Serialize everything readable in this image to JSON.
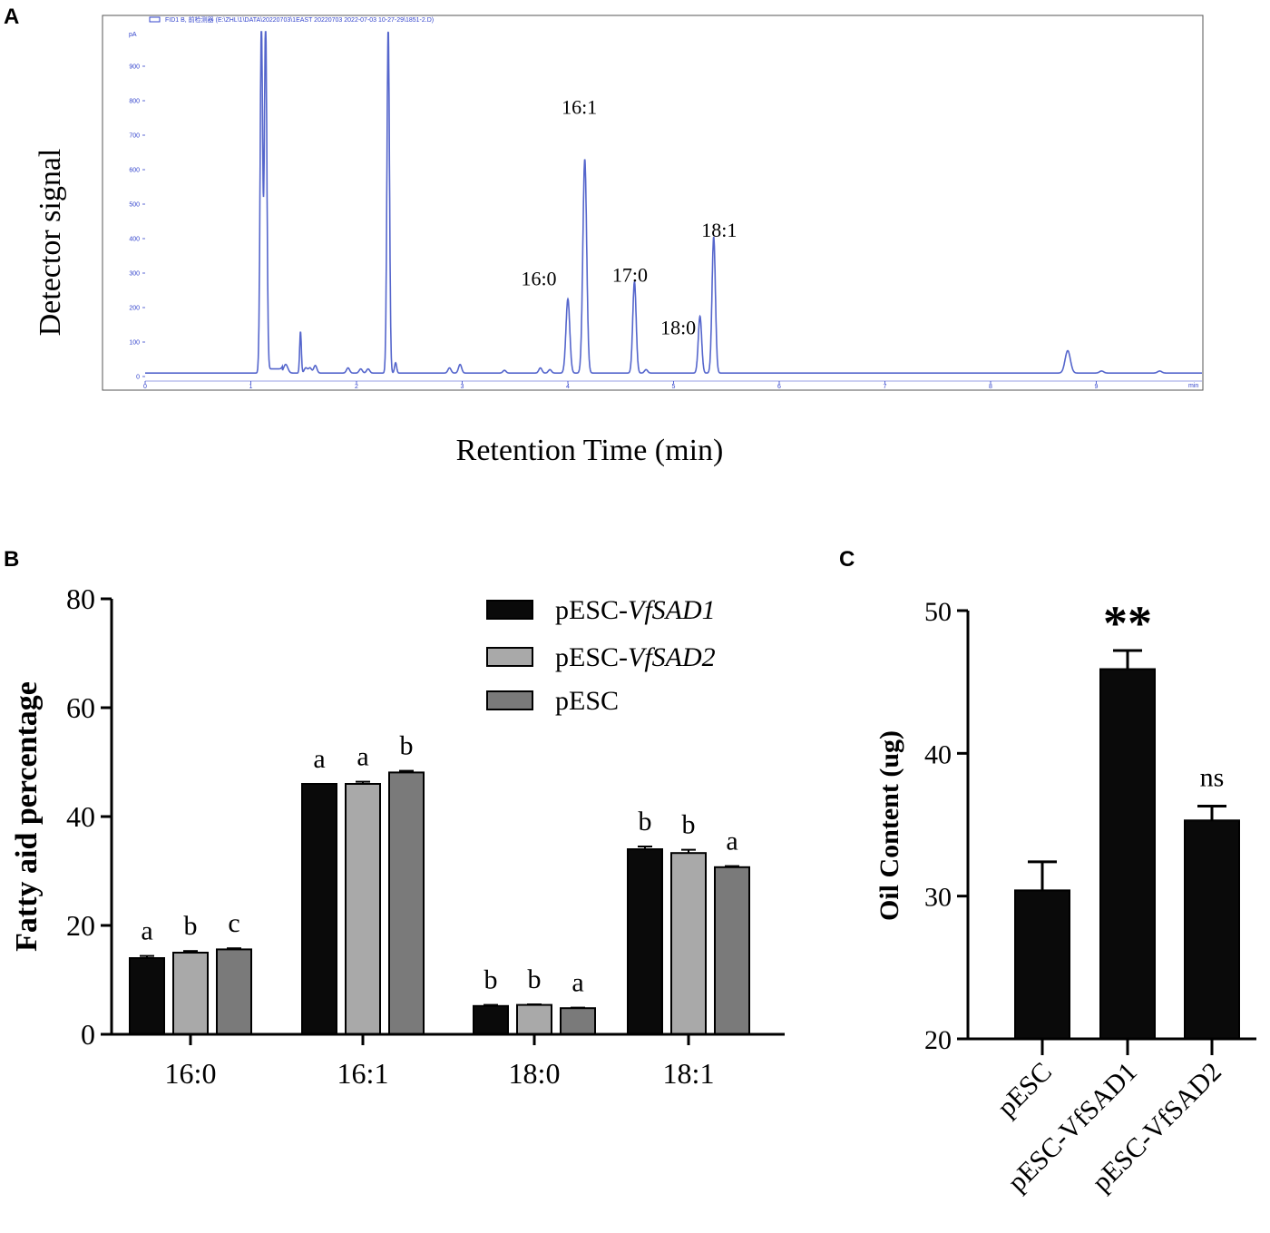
{
  "panels": {
    "a": "A",
    "b": "B",
    "c": "C"
  },
  "colors": {
    "trace": "#5566cc",
    "bar_vfsad1": "#0a0a0a",
    "bar_vfsad2": "#a9a9a9",
    "bar_pesc": "#7a7a7a",
    "axis": "#000000"
  },
  "chart_data": [
    {
      "id": "A",
      "type": "line",
      "title": "",
      "xlabel": "Retention Time (min)",
      "ylabel": "Detector signal",
      "header": "FID1 B, 前检测器 (E:\\ZHL\\1\\DATA\\20220703\\1EAST 20220703 2022-07-03 10-27-29\\1851-2.D)",
      "y_unit": "pA",
      "x_unit": "min",
      "xlim": [
        0,
        10
      ],
      "ylim": [
        0,
        1000
      ],
      "x_ticks": [
        "0",
        "1",
        "2",
        "3",
        "4",
        "5",
        "6",
        "7",
        "8",
        "9"
      ],
      "y_ticks": [
        "0",
        "100",
        "200",
        "300",
        "400",
        "500",
        "600",
        "700",
        "800",
        "900"
      ],
      "baseline": 10,
      "peaks": [
        {
          "rt": 1.1,
          "height": 1000,
          "width": 0.012
        },
        {
          "rt": 1.14,
          "height": 1000,
          "width": 0.012
        },
        {
          "rt": 1.33,
          "height": 25,
          "width": 0.02
        },
        {
          "rt": 1.47,
          "height": 120,
          "width": 0.008
        },
        {
          "rt": 1.52,
          "height": 15,
          "width": 0.015
        },
        {
          "rt": 1.56,
          "height": 15,
          "width": 0.015
        },
        {
          "rt": 1.61,
          "height": 22,
          "width": 0.015
        },
        {
          "rt": 1.92,
          "height": 15,
          "width": 0.015
        },
        {
          "rt": 2.04,
          "height": 12,
          "width": 0.015
        },
        {
          "rt": 2.11,
          "height": 12,
          "width": 0.015
        },
        {
          "rt": 2.3,
          "height": 1000,
          "width": 0.012
        },
        {
          "rt": 2.37,
          "height": 30,
          "width": 0.01
        },
        {
          "rt": 2.88,
          "height": 15,
          "width": 0.015
        },
        {
          "rt": 2.98,
          "height": 25,
          "width": 0.015
        },
        {
          "rt": 3.4,
          "height": 8,
          "width": 0.015
        },
        {
          "rt": 3.74,
          "height": 15,
          "width": 0.015
        },
        {
          "rt": 3.83,
          "height": 10,
          "width": 0.015
        },
        {
          "rt": 4.0,
          "height": 215,
          "width": 0.018
        },
        {
          "rt": 4.16,
          "height": 620,
          "width": 0.018
        },
        {
          "rt": 4.63,
          "height": 265,
          "width": 0.016
        },
        {
          "rt": 4.74,
          "height": 10,
          "width": 0.015
        },
        {
          "rt": 5.25,
          "height": 165,
          "width": 0.016
        },
        {
          "rt": 5.38,
          "height": 395,
          "width": 0.016
        },
        {
          "rt": 8.73,
          "height": 65,
          "width": 0.025
        },
        {
          "rt": 9.05,
          "height": 6,
          "width": 0.02
        },
        {
          "rt": 9.6,
          "height": 6,
          "width": 0.02
        }
      ],
      "peak_labels": [
        {
          "label": "16:1",
          "rt": 4.16
        },
        {
          "label": "16:0",
          "rt": 4.0
        },
        {
          "label": "17:0",
          "rt": 4.63
        },
        {
          "label": "18:1",
          "rt": 5.38
        },
        {
          "label": "18:0",
          "rt": 5.25
        }
      ]
    },
    {
      "id": "B",
      "type": "bar",
      "title": "",
      "xlabel": "",
      "ylabel": "Fatty aid percentage",
      "ylim": [
        0,
        80
      ],
      "y_ticks": [
        "0",
        "20",
        "40",
        "60",
        "80"
      ],
      "categories": [
        "16:0",
        "16:1",
        "18:0",
        "18:1"
      ],
      "series": [
        {
          "name_prefix": "pESC-",
          "name_italic": "VfSAD1",
          "values": [
            14.0,
            46.0,
            5.2,
            34.0
          ],
          "errors": [
            0.4,
            0.0,
            0.2,
            0.5
          ],
          "letters": [
            "a",
            "a",
            "b",
            "b"
          ]
        },
        {
          "name_prefix": "pESC-",
          "name_italic": "VfSAD2",
          "values": [
            15.0,
            46.0,
            5.4,
            33.3
          ],
          "errors": [
            0.3,
            0.4,
            0.1,
            0.6
          ],
          "letters": [
            "b",
            "a",
            "b",
            "b"
          ]
        },
        {
          "name_prefix": "pESC",
          "name_italic": "",
          "values": [
            15.6,
            48.1,
            4.8,
            30.7
          ],
          "errors": [
            0.2,
            0.3,
            0.1,
            0.2
          ],
          "letters": [
            "c",
            "b",
            "a",
            "a"
          ]
        }
      ]
    },
    {
      "id": "C",
      "type": "bar",
      "title": "",
      "xlabel": "",
      "ylabel": "Oil  Content (ug)",
      "ylim": [
        20,
        50
      ],
      "y_ticks": [
        "20",
        "30",
        "40",
        "50"
      ],
      "categories": [
        "pESC",
        "pESC-VfSAD1",
        "pESC-VfSAD2"
      ],
      "values": [
        30.4,
        45.9,
        35.3
      ],
      "errors": [
        2.0,
        1.3,
        1.0
      ],
      "annotations": [
        "",
        "**",
        "ns"
      ]
    }
  ]
}
